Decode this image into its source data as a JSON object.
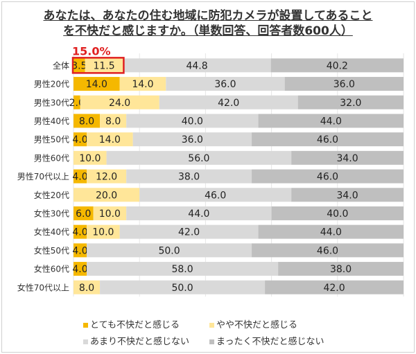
{
  "chart_data": {
    "type": "bar",
    "orientation": "horizontal-stacked-100",
    "title": "あなたは、あなたの住む地域に防犯カメラが設置してあることを不快だと感じますか。（単数回答、回答者数600人）",
    "title_lines": [
      "あなたは、あなたの住む地域に防犯カメラが設置してあること",
      "を不快だと感じますか。（単数回答、回答者数600人）"
    ],
    "annotation": "15.0%",
    "annotation_color": "#E02020",
    "categories": [
      "全体",
      "男性20代",
      "男性30代",
      "男性40代",
      "男性50代",
      "男性60代",
      "男性70代以上",
      "女性20代",
      "女性30代",
      "女性40代",
      "女性50代",
      "女性60代",
      "女性70代以上"
    ],
    "series": [
      {
        "name": "とても不快だと感じる",
        "color": "#F5B800",
        "values": [
          3.5,
          14,
          2,
          8,
          4,
          0,
          4,
          0,
          6,
          4,
          4,
          4,
          0
        ],
        "labels": [
          "3.5",
          "14.0",
          "2.0",
          "8.0",
          "4.0",
          "-",
          "4.0",
          "",
          "6.0",
          "4.0",
          "4.0",
          "4.0",
          "-"
        ]
      },
      {
        "name": "やや不快だと感じる",
        "color": "#FFE699",
        "values": [
          11.5,
          14,
          24,
          8,
          14,
          10,
          12,
          20,
          10,
          10,
          0,
          0,
          8
        ],
        "labels": [
          "11.5",
          "14.0",
          "24.0",
          "8.0",
          "14.0",
          "10.0",
          "12.0",
          "20.0",
          "10.0",
          "10.0",
          "",
          "",
          "8.0"
        ]
      },
      {
        "name": "あまり不快だと感じない",
        "color": "#D9D9D9",
        "values": [
          44.8,
          36,
          42,
          40,
          36,
          56,
          38,
          46,
          44,
          42,
          50,
          58,
          50
        ],
        "labels": [
          "44.8",
          "36.0",
          "42.0",
          "40.0",
          "36.0",
          "56.0",
          "38.0",
          "46.0",
          "44.0",
          "42.0",
          "50.0",
          "58.0",
          "50.0"
        ]
      },
      {
        "name": "まったく不快だと感じない",
        "color": "#BFBFBF",
        "values": [
          40.2,
          36,
          32,
          44,
          46,
          34,
          46,
          34,
          40,
          44,
          46,
          38,
          42
        ],
        "labels": [
          "40.2",
          "36.0",
          "32.0",
          "44.0",
          "46.0",
          "34.0",
          "46.0",
          "34.0",
          "40.0",
          "44.0",
          "46.0",
          "38.0",
          "42.0"
        ]
      }
    ],
    "xlim": [
      0,
      100
    ],
    "grid": true,
    "legend_placement": "bottom"
  }
}
